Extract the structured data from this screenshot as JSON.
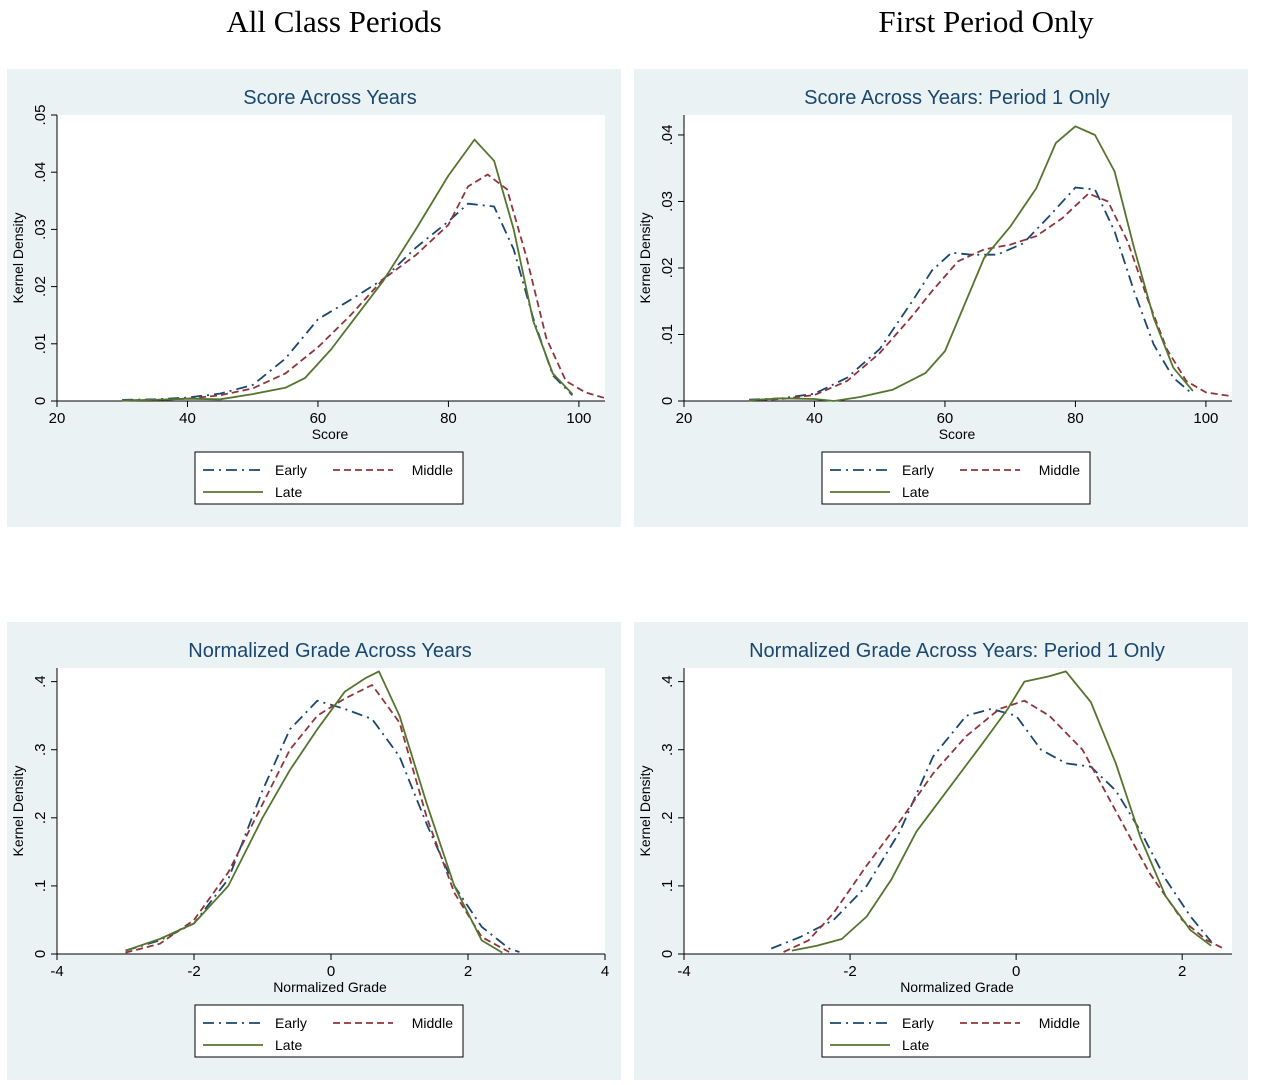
{
  "page": {
    "left_heading": "All Class Periods",
    "right_heading": "First Period Only"
  },
  "colors": {
    "panel_background": "#eaf2f3",
    "plot_background": "#ffffff",
    "title": "#1a476f",
    "early": "#1a476f",
    "middle": "#90353b",
    "late": "#55752f"
  },
  "chart_data": [
    {
      "type": "line",
      "title": "Score Across Years",
      "xlabel": "Score",
      "ylabel": "Kernel Density",
      "xlim": [
        20,
        104
      ],
      "ylim": [
        0,
        0.05
      ],
      "xticks": [
        20,
        40,
        60,
        80,
        100
      ],
      "xtick_labels": [
        "20",
        "40",
        "60",
        "80",
        "100"
      ],
      "yticks": [
        0,
        0.01,
        0.02,
        0.03,
        0.04,
        0.05
      ],
      "ytick_labels": [
        "0",
        ".01",
        ".02",
        ".03",
        ".04",
        ".05"
      ],
      "grid": false,
      "legend_position": "bottom",
      "legend_entries": [
        "Early",
        "Middle",
        "Late"
      ],
      "series": [
        {
          "name": "Early",
          "style": "dash-dot",
          "color": "#1a476f",
          "x": [
            30,
            35,
            40,
            45,
            50,
            55,
            60,
            65,
            70,
            75,
            80,
            83,
            87,
            90,
            93,
            96,
            99
          ],
          "y": [
            0.0002,
            0.0003,
            0.0006,
            0.0013,
            0.0028,
            0.0074,
            0.0143,
            0.0177,
            0.0213,
            0.0268,
            0.0314,
            0.0345,
            0.034,
            0.0265,
            0.0145,
            0.0045,
            0.001
          ]
        },
        {
          "name": "Middle",
          "style": "dashed",
          "color": "#90353b",
          "x": [
            30,
            35,
            40,
            45,
            50,
            55,
            60,
            65,
            70,
            75,
            80,
            83,
            86,
            89,
            92,
            95,
            98,
            101,
            104
          ],
          "y": [
            0.0001,
            0.0002,
            0.0004,
            0.001,
            0.0022,
            0.0048,
            0.0094,
            0.015,
            0.0213,
            0.0255,
            0.0308,
            0.0375,
            0.0396,
            0.037,
            0.025,
            0.011,
            0.0035,
            0.0015,
            0.0005
          ]
        },
        {
          "name": "Late",
          "style": "solid",
          "color": "#55752f",
          "x": [
            30,
            35,
            40,
            45,
            50,
            55,
            58,
            62,
            66,
            70,
            75,
            80,
            84,
            87,
            90,
            93,
            96,
            99
          ],
          "y": [
            0.0001,
            0.0002,
            0.0004,
            0.0003,
            0.0012,
            0.0023,
            0.004,
            0.009,
            0.015,
            0.021,
            0.03,
            0.0394,
            0.0457,
            0.042,
            0.03,
            0.014,
            0.0048,
            0.0012
          ]
        }
      ]
    },
    {
      "type": "line",
      "title": "Score Across Years: Period 1 Only",
      "xlabel": "Score",
      "ylabel": "Kernel Density",
      "xlim": [
        20,
        104
      ],
      "ylim": [
        0,
        0.043
      ],
      "xticks": [
        20,
        40,
        60,
        80,
        100
      ],
      "xtick_labels": [
        "20",
        "40",
        "60",
        "80",
        "100"
      ],
      "yticks": [
        0,
        0.01,
        0.02,
        0.03,
        0.04
      ],
      "ytick_labels": [
        "0",
        ".01",
        ".02",
        ".03",
        ".04"
      ],
      "grid": false,
      "legend_position": "bottom",
      "legend_entries": [
        "Early",
        "Middle",
        "Late"
      ],
      "series": [
        {
          "name": "Early",
          "style": "dash-dot",
          "color": "#1a476f",
          "x": [
            30,
            35,
            40,
            45,
            50,
            55,
            58,
            61,
            64,
            68,
            72,
            76,
            80,
            83,
            86,
            89,
            92,
            95,
            98
          ],
          "y": [
            0.0002,
            0.0004,
            0.0011,
            0.0035,
            0.0078,
            0.015,
            0.0196,
            0.0223,
            0.022,
            0.022,
            0.0237,
            0.0278,
            0.0321,
            0.0318,
            0.0255,
            0.0165,
            0.0085,
            0.0035,
            0.001
          ]
        },
        {
          "name": "Middle",
          "style": "dashed",
          "color": "#90353b",
          "x": [
            30,
            35,
            40,
            45,
            50,
            55,
            58,
            62,
            66,
            70,
            74,
            78,
            82,
            85,
            88,
            91,
            94,
            97,
            100,
            104
          ],
          "y": [
            0.0001,
            0.0003,
            0.0009,
            0.003,
            0.0072,
            0.0128,
            0.0165,
            0.021,
            0.0228,
            0.0235,
            0.0248,
            0.0275,
            0.0312,
            0.03,
            0.024,
            0.0155,
            0.0078,
            0.003,
            0.0013,
            0.0007
          ]
        },
        {
          "name": "Late",
          "style": "solid",
          "color": "#55752f",
          "x": [
            30,
            35,
            40,
            43,
            47,
            52,
            57,
            60,
            63,
            66,
            70,
            74,
            77,
            80,
            83,
            86,
            89,
            92,
            95,
            98
          ],
          "y": [
            0.0001,
            0.0004,
            0.0003,
            0,
            0.0006,
            0.0017,
            0.0042,
            0.0075,
            0.0145,
            0.0215,
            0.0262,
            0.032,
            0.0388,
            0.0413,
            0.04,
            0.0345,
            0.023,
            0.0125,
            0.005,
            0.0015
          ]
        }
      ]
    },
    {
      "type": "line",
      "title": "Normalized Grade Across Years",
      "xlabel": "Normalized Grade",
      "ylabel": "Kernel Density",
      "xlim": [
        -4,
        4
      ],
      "ylim": [
        0,
        0.42
      ],
      "xticks": [
        -4,
        -2,
        0,
        2,
        4
      ],
      "xtick_labels": [
        "-4",
        "-2",
        "0",
        "2",
        "4"
      ],
      "yticks": [
        0,
        0.1,
        0.2,
        0.3,
        0.4
      ],
      "ytick_labels": [
        "0",
        ".1",
        ".2",
        ".3",
        ".4"
      ],
      "grid": false,
      "legend_position": "bottom",
      "legend_entries": [
        "Early",
        "Middle",
        "Late"
      ],
      "series": [
        {
          "name": "Early",
          "style": "dash-dot",
          "color": "#1a476f",
          "x": [
            -3,
            -2.5,
            -2,
            -1.5,
            -1,
            -0.6,
            -0.2,
            0.2,
            0.6,
            1,
            1.4,
            1.8,
            2.2,
            2.6,
            2.75
          ],
          "y": [
            0.005,
            0.02,
            0.045,
            0.11,
            0.24,
            0.33,
            0.372,
            0.36,
            0.345,
            0.29,
            0.19,
            0.1,
            0.04,
            0.008,
            0.003
          ]
        },
        {
          "name": "Middle",
          "style": "dashed",
          "color": "#90353b",
          "x": [
            -3,
            -2.5,
            -2,
            -1.5,
            -1,
            -0.6,
            -0.2,
            0.2,
            0.6,
            1,
            1.4,
            1.8,
            2.2,
            2.6
          ],
          "y": [
            0.002,
            0.015,
            0.05,
            0.12,
            0.22,
            0.3,
            0.35,
            0.375,
            0.395,
            0.34,
            0.2,
            0.09,
            0.025,
            0.003
          ]
        },
        {
          "name": "Late",
          "style": "solid",
          "color": "#55752f",
          "x": [
            -3,
            -2.5,
            -2,
            -1.5,
            -1,
            -0.6,
            -0.2,
            0.2,
            0.5,
            0.7,
            1,
            1.4,
            1.8,
            2.2,
            2.5
          ],
          "y": [
            0.005,
            0.022,
            0.045,
            0.1,
            0.2,
            0.27,
            0.33,
            0.385,
            0.405,
            0.415,
            0.35,
            0.22,
            0.1,
            0.02,
            0.002
          ]
        }
      ]
    },
    {
      "type": "line",
      "title": "Normalized Grade Across Years: Period 1 Only",
      "xlabel": "Normalized Grade",
      "ylabel": "Kernel Density",
      "xlim": [
        -4,
        2.6
      ],
      "ylim": [
        0,
        0.42
      ],
      "xticks": [
        -4,
        -2,
        0,
        2
      ],
      "xtick_labels": [
        "-4",
        "-2",
        "0",
        "2"
      ],
      "yticks": [
        0,
        0.1,
        0.2,
        0.3,
        0.4
      ],
      "ytick_labels": [
        "0",
        ".1",
        ".2",
        ".3",
        ".4"
      ],
      "grid": false,
      "legend_position": "bottom",
      "legend_entries": [
        "Early",
        "Middle",
        "Late"
      ],
      "series": [
        {
          "name": "Early",
          "style": "dash-dot",
          "color": "#1a476f",
          "x": [
            -2.95,
            -2.6,
            -2.2,
            -1.8,
            -1.4,
            -1,
            -0.6,
            -0.3,
            0,
            0.3,
            0.6,
            0.9,
            1.2,
            1.5,
            1.8,
            2.1,
            2.35
          ],
          "y": [
            0.008,
            0.025,
            0.05,
            0.1,
            0.18,
            0.29,
            0.35,
            0.36,
            0.35,
            0.3,
            0.28,
            0.275,
            0.24,
            0.18,
            0.11,
            0.055,
            0.018
          ]
        },
        {
          "name": "Middle",
          "style": "dashed",
          "color": "#90353b",
          "x": [
            -2.8,
            -2.5,
            -2.2,
            -1.8,
            -1.4,
            -1,
            -0.6,
            -0.2,
            0.1,
            0.4,
            0.8,
            1.2,
            1.6,
            2,
            2.3,
            2.5
          ],
          "y": [
            0.003,
            0.02,
            0.06,
            0.13,
            0.195,
            0.265,
            0.32,
            0.36,
            0.372,
            0.35,
            0.3,
            0.21,
            0.12,
            0.05,
            0.02,
            0.008
          ]
        },
        {
          "name": "Late",
          "style": "solid",
          "color": "#55752f",
          "x": [
            -2.7,
            -2.4,
            -2.1,
            -1.8,
            -1.5,
            -1.2,
            -0.8,
            -0.4,
            -0.1,
            0.1,
            0.4,
            0.6,
            0.9,
            1.2,
            1.5,
            1.8,
            2.1,
            2.35
          ],
          "y": [
            0.005,
            0.012,
            0.022,
            0.055,
            0.11,
            0.18,
            0.245,
            0.31,
            0.36,
            0.4,
            0.408,
            0.415,
            0.37,
            0.28,
            0.17,
            0.085,
            0.035,
            0.012
          ]
        }
      ]
    }
  ]
}
